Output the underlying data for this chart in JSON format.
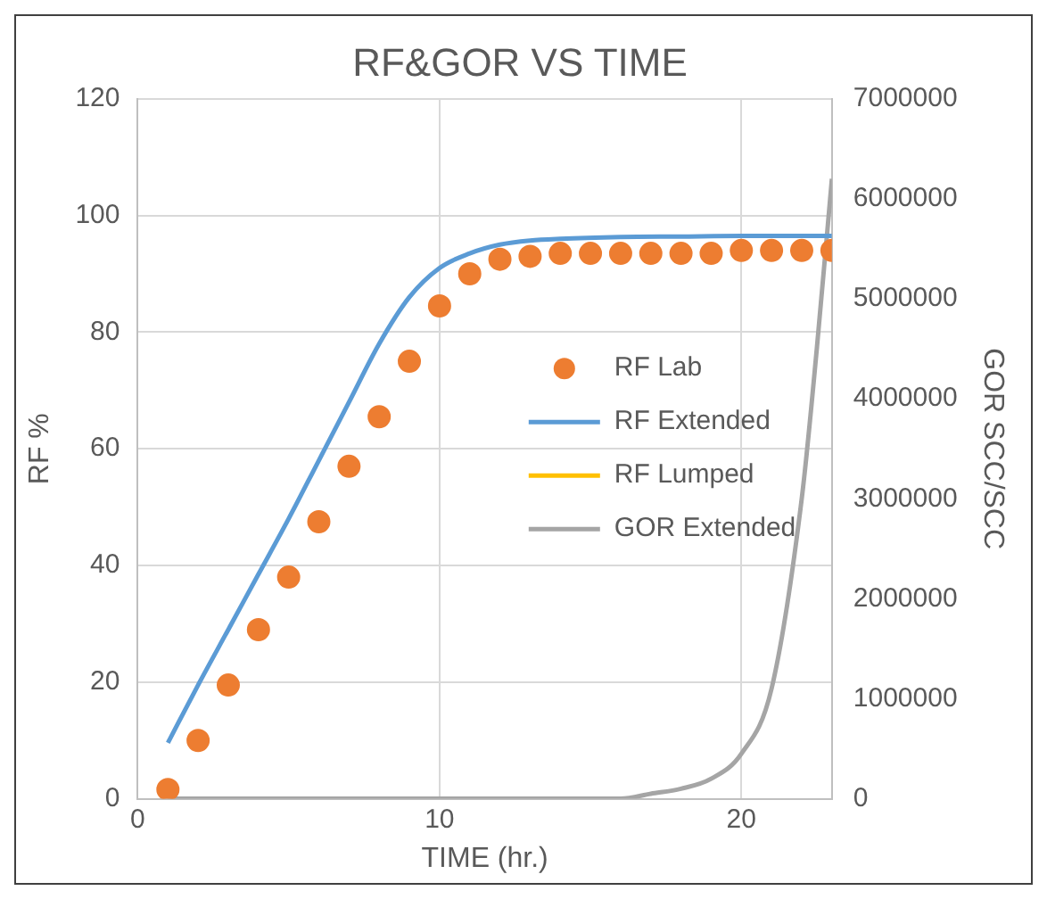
{
  "chart_data": {
    "type": "scatter",
    "title": "RF&GOR VS TIME",
    "xlabel": "TIME (hr.)",
    "ylabel": "RF %",
    "y2label": "GOR SCC/SCC",
    "xlim": [
      0,
      23
    ],
    "xticks": [
      0,
      10,
      20
    ],
    "ylim": [
      0,
      120
    ],
    "yticks": [
      0,
      20,
      40,
      60,
      80,
      100,
      120
    ],
    "y2lim": [
      0,
      7000000
    ],
    "y2ticks": [
      0,
      1000000,
      2000000,
      3000000,
      4000000,
      5000000,
      6000000,
      7000000
    ],
    "grid": true,
    "legend": "right",
    "series": [
      {
        "name": "RF Lab",
        "marker": "circle",
        "color": "#ed7d31",
        "x": [
          1,
          2,
          3,
          4,
          5,
          6,
          7,
          8,
          9,
          10,
          11,
          12,
          13,
          14,
          15,
          16,
          17,
          18,
          19,
          20,
          21,
          22,
          23
        ],
        "values": [
          1.6,
          10,
          19.5,
          29,
          38,
          47.5,
          57,
          65.5,
          75,
          84.5,
          90,
          92.5,
          93,
          93.5,
          93.5,
          93.5,
          93.5,
          93.5,
          93.5,
          94,
          94,
          94,
          94
        ]
      },
      {
        "name": "RF Extended",
        "type": "line",
        "color": "#5b9bd5",
        "x": [
          1,
          2,
          3,
          4,
          5,
          6,
          7,
          8,
          9,
          10,
          11,
          12,
          13,
          14,
          16,
          18,
          20,
          23
        ],
        "values": [
          9.6,
          19.5,
          29,
          38.5,
          48,
          58,
          68,
          78,
          86,
          91,
          93.5,
          95,
          95.7,
          96,
          96.3,
          96.4,
          96.5,
          96.5
        ]
      },
      {
        "name": "RF Lumped",
        "type": "line",
        "color": "#ffc000"
      },
      {
        "name": "GOR Extended",
        "type": "line",
        "axis": "y2",
        "color": "#a5a5a5",
        "x": [
          1,
          10,
          16,
          17,
          18,
          19,
          20,
          21,
          22,
          22.5,
          23
        ],
        "values": [
          0,
          0,
          0,
          50000,
          100000,
          200000,
          450000,
          1100000,
          3000000,
          4500000,
          6200000
        ]
      }
    ]
  }
}
